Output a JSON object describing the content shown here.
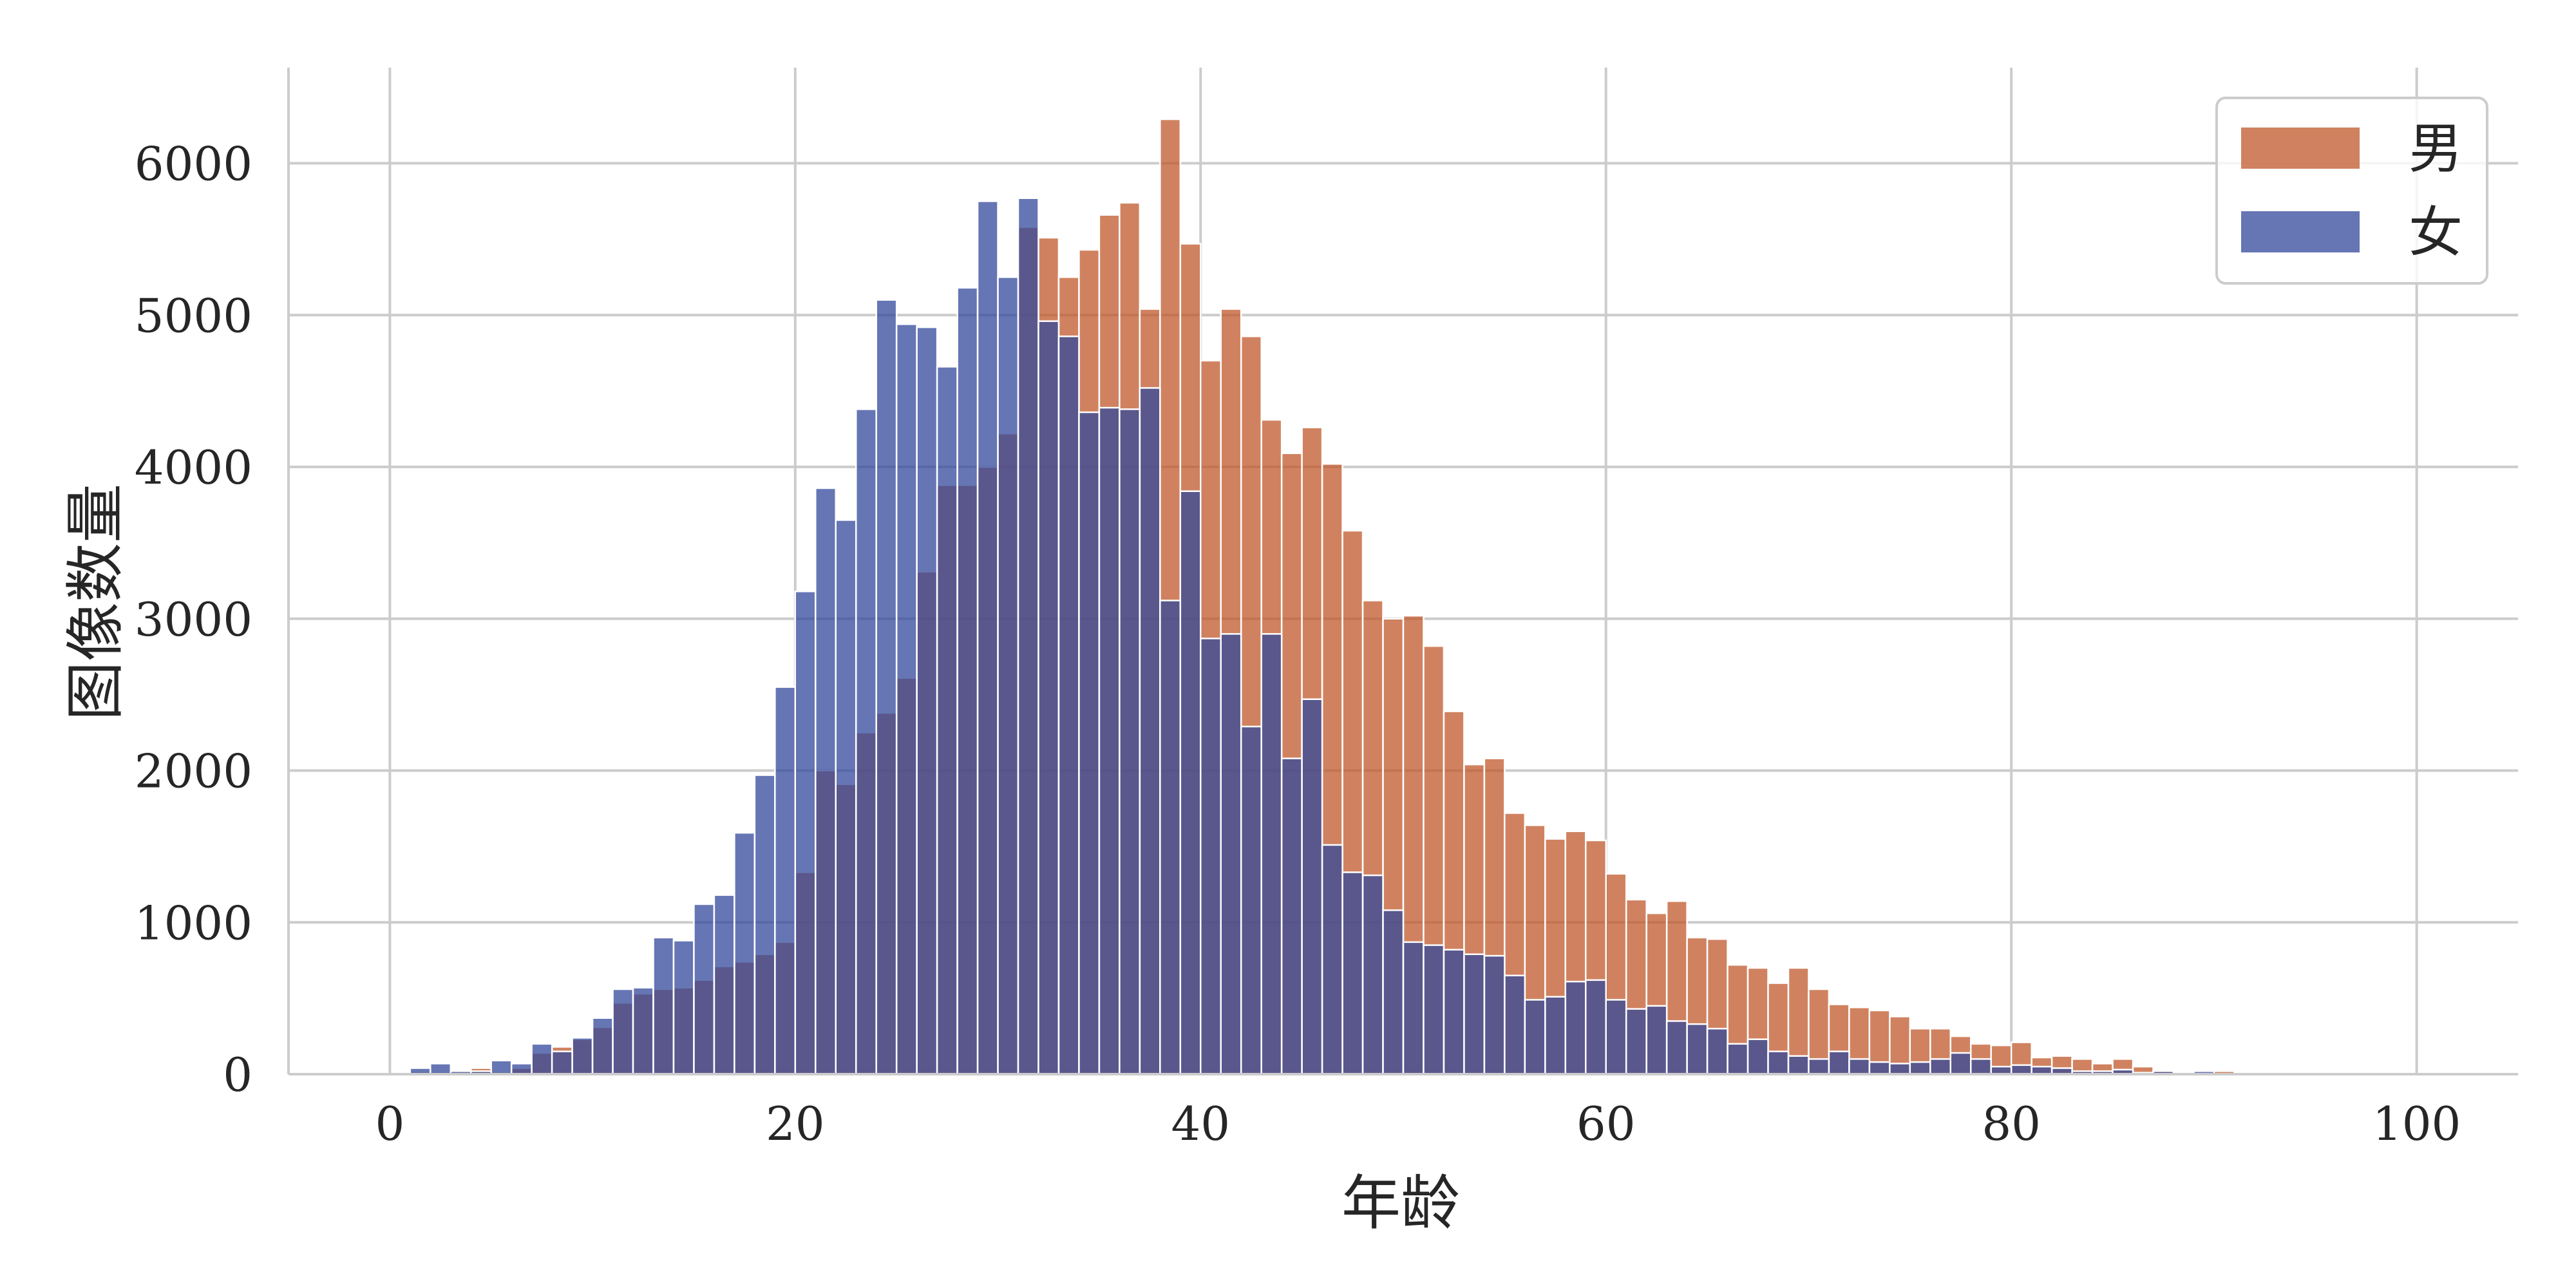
{
  "chart_data": {
    "type": "bar",
    "subtype": "overlapping-histogram",
    "title": "",
    "xlabel": "年龄",
    "ylabel": "图像数量",
    "xlim": [
      -5,
      105
    ],
    "ylim": [
      0,
      6630
    ],
    "xticks": [
      0,
      20,
      40,
      60,
      80,
      100
    ],
    "yticks": [
      0,
      1000,
      2000,
      3000,
      4000,
      5000,
      6000
    ],
    "grid": true,
    "legend": {
      "position": "top-right",
      "entries": [
        "男",
        "女"
      ]
    },
    "bin_start": 1,
    "bin_width": 1,
    "series": [
      {
        "name": "男",
        "color": "#c0582b",
        "alpha": 0.75,
        "values": [
          15,
          15,
          15,
          40,
          15,
          40,
          140,
          180,
          230,
          310,
          470,
          530,
          560,
          570,
          620,
          710,
          740,
          790,
          870,
          1330,
          2000,
          1910,
          2250,
          2380,
          2610,
          3310,
          3880,
          3880,
          4000,
          4220,
          5580,
          5510,
          5250,
          5430,
          5660,
          5740,
          5040,
          6290,
          5470,
          4700,
          5040,
          4860,
          4310,
          4090,
          4260,
          4020,
          3580,
          3120,
          3000,
          3020,
          2820,
          2390,
          2040,
          2080,
          1720,
          1640,
          1550,
          1600,
          1540,
          1320,
          1150,
          1060,
          1140,
          900,
          890,
          720,
          700,
          600,
          700,
          560,
          460,
          440,
          420,
          380,
          300,
          300,
          250,
          200,
          190,
          210,
          110,
          120,
          100,
          70,
          100,
          50,
          20,
          10,
          10,
          20,
          0,
          0,
          0,
          0,
          0,
          0,
          0,
          0,
          0,
          0
        ]
      },
      {
        "name": "女",
        "color": "#33489b",
        "alpha": 0.75,
        "values": [
          40,
          70,
          20,
          20,
          90,
          70,
          200,
          150,
          240,
          370,
          560,
          570,
          900,
          880,
          1120,
          1180,
          1590,
          1970,
          2550,
          3180,
          3860,
          3650,
          4380,
          5100,
          4940,
          4920,
          4660,
          5180,
          5750,
          5250,
          5770,
          4960,
          4860,
          4360,
          4390,
          4380,
          4520,
          3120,
          3840,
          2870,
          2900,
          2290,
          2900,
          2080,
          2470,
          1510,
          1330,
          1310,
          1080,
          870,
          850,
          820,
          790,
          780,
          650,
          490,
          510,
          610,
          620,
          490,
          430,
          450,
          350,
          330,
          300,
          200,
          230,
          150,
          120,
          100,
          150,
          100,
          80,
          70,
          80,
          100,
          140,
          100,
          50,
          60,
          50,
          40,
          20,
          20,
          30,
          10,
          20,
          10,
          20,
          0,
          0,
          0,
          0,
          0,
          0,
          0,
          0,
          0,
          0,
          0
        ]
      }
    ]
  }
}
